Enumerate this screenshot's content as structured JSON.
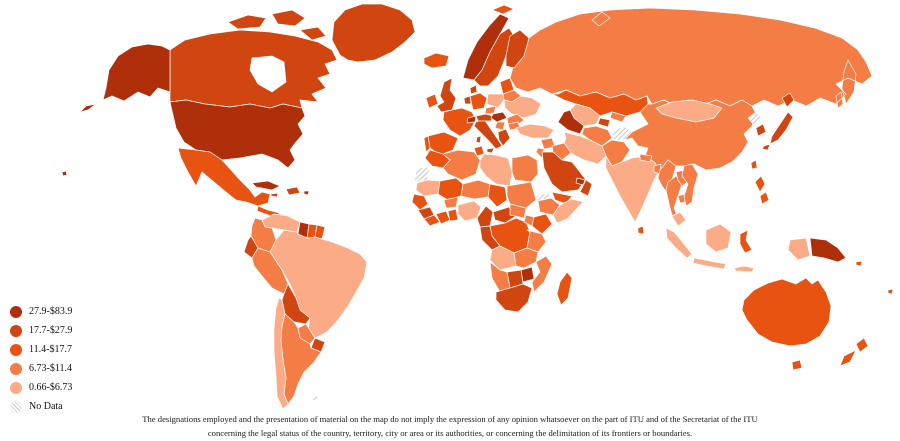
{
  "legend": {
    "items": [
      {
        "key": "cat1",
        "label": "27.9-$83.9",
        "color": "#b02f0b"
      },
      {
        "key": "cat2",
        "label": "17.7-$27.9",
        "color": "#d04510"
      },
      {
        "key": "cat3",
        "label": "11.4-$17.7",
        "color": "#e85312"
      },
      {
        "key": "cat4",
        "label": "6.73-$11.4",
        "color": "#f47c45"
      },
      {
        "key": "cat5",
        "label": "0.66-$6.73",
        "color": "#fbab85"
      },
      {
        "key": "nodata",
        "label": "No Data",
        "color": "hatch"
      }
    ]
  },
  "disclaimer": {
    "line1": "The designations employed and the presentation of material on the map do not imply the expression of any opinion whatsoever on the part of ITU and of the Secretariat of the ITU",
    "line2": "concerning the legal status of the country, territory, city or area or its authorities, or concerning the delimitation of its frontiers or boundaries."
  },
  "map": {
    "border_color": "#ffffff",
    "no_data_hatch_color": "#c9c9c9",
    "regions": {
      "alaska": "cat1",
      "canada": "cat2",
      "arctic": "cat2",
      "usa": "cat1",
      "hawaii": "cat1",
      "mexico": "cat3",
      "centralamerica": "cat3",
      "panama": "cat2",
      "cuba": "cat1",
      "jamaica": "cat2",
      "hispaniola": "cat2",
      "puertorico": "cat1",
      "greenland": "cat2",
      "iceland": "cat3",
      "venezuela": "cat5",
      "colombia": "cat4",
      "guyana": "cat1",
      "suriname": "cat3",
      "frenchguiana": "cat3",
      "brazil": "cat5",
      "ecuador": "cat2",
      "peru": "cat4",
      "bolivia": "cat2",
      "paraguay": "cat4",
      "uruguay": "cat2",
      "argentina": "cat4",
      "chile": "cat5",
      "falklands": "nodata",
      "ireland": "cat3",
      "uk": "cat2",
      "norway": "cat1",
      "sweden": "cat2",
      "finland": "cat2",
      "svalbard": "cat3",
      "denmark": "cat2",
      "baltics": "cat3",
      "belarus": "cat4",
      "poland": "cat5",
      "germany": "cat3",
      "lowlands": "cat2",
      "france": "cat3",
      "spain": "cat3",
      "portugal": "cat3",
      "switzerland": "cat1",
      "italy": "cat2",
      "czech": "cat4",
      "austria": "cat2",
      "hungary": "cat1",
      "ukraine": "cat5",
      "romania": "cat4",
      "serbia": "cat4",
      "greece": "cat2",
      "bulgaria": "cat4",
      "russia": "cat4",
      "kazakhstan": "cat3",
      "uzbekistan": "cat5",
      "turkmenistan": "cat1",
      "kyrgyzstan": "cat4",
      "tajikistan": "cat2",
      "afghanistan": "cat4",
      "kashmir": "nodata",
      "pakistan": "cat4",
      "turkey": "cat5",
      "syria": "cat4",
      "iraq": "cat4",
      "iran": "cat5",
      "jordan": "cat4",
      "saudi": "cat2",
      "yemen": "cat3",
      "oman": "cat2",
      "uae": "cat1",
      "morocco": "cat3",
      "wsahara": "nodata",
      "algeria": "cat4",
      "tunisia": "cat3",
      "libya": "cat5",
      "egypt": "cat4",
      "mauritania": "cat5",
      "mali": "cat3",
      "niger": "cat4",
      "chad": "cat3",
      "sudan": "cat4",
      "eritrea": "nodata",
      "ethiopia": "cat4",
      "somalia": "cat5",
      "senegal": "cat3",
      "guinea": "cat2",
      "sierraleone": "cat3",
      "ivorycoast": "cat3",
      "ghana": "cat3",
      "burkina": "cat4",
      "nigeria": "cat5",
      "cameroon": "cat2",
      "car": "cat2",
      "southsudan": "cat4",
      "drc": "cat3",
      "gabon": "cat2",
      "uganda": "cat4",
      "kenya": "cat3",
      "tanzania": "cat4",
      "angola": "cat5",
      "zambia": "cat4",
      "mozambique": "cat4",
      "zimbabwe": "cat1",
      "botswana": "cat2",
      "namibia": "cat4",
      "southafrica": "cat2",
      "madagascar": "cat3",
      "india": "cat5",
      "nepal": "cat4",
      "bangladesh": "cat4",
      "srilanka": "cat3",
      "myanmar": "cat4",
      "thailand": "cat4",
      "laos": "cat4",
      "cambodia": "cat4",
      "vietnam": "cat4",
      "malaysia": "cat5",
      "china": "cat4",
      "mongolia": "cat5",
      "northkorea": "nodata",
      "southkorea": "cat2",
      "japan": "cat2",
      "taiwan": "cat3",
      "philippines": "cat3",
      "sumatra": "cat5",
      "java": "cat5",
      "borneo": "cat5",
      "sulawesi": "cat3",
      "lessersunda": "cat5",
      "wpapua": "cat5",
      "png": "cat1",
      "solomon": "cat3",
      "fiji": "cat3",
      "australia": "cat3",
      "tasmania": "cat3",
      "nz": "cat3"
    }
  }
}
